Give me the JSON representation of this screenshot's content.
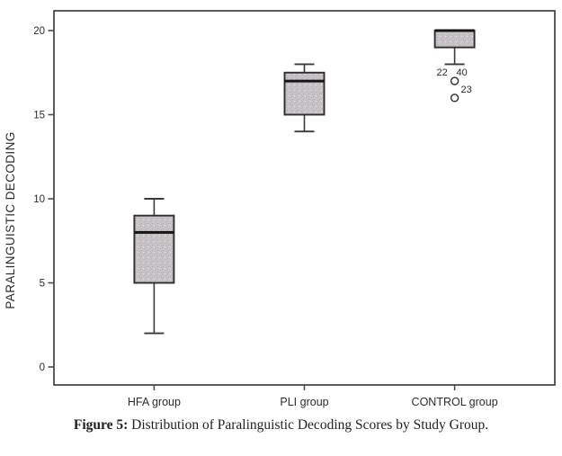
{
  "figure": {
    "caption_prefix": "Figure 5:",
    "caption_text": " Distribution of Paralinguistic Decoding Scores by Study Group."
  },
  "chart_data": {
    "type": "boxplot",
    "title": "",
    "xlabel": "",
    "ylabel": "PARALINGUISTIC DECODING",
    "ylim": [
      0,
      21.2
    ],
    "y_ticks": [
      0,
      5,
      10,
      15,
      20
    ],
    "grid": false,
    "legend": null,
    "categories": [
      "HFA group",
      "PLI group",
      "CONTROL group"
    ],
    "series": [
      {
        "name": "HFA group",
        "whisker_low": 2,
        "q1": 5,
        "median": 8,
        "q3": 9,
        "whisker_high": 10,
        "outliers": []
      },
      {
        "name": "PLI group",
        "whisker_low": 14,
        "q1": 15,
        "median": 17,
        "q3": 17.5,
        "whisker_high": 18,
        "outliers": []
      },
      {
        "name": "CONTROL group",
        "whisker_low": 18,
        "q1": 19,
        "median": 20,
        "q3": 20,
        "whisker_high": 20,
        "outliers": [
          {
            "value": 17,
            "case_labels": [
              "22",
              "40"
            ]
          },
          {
            "value": 16,
            "case_labels": [
              "23"
            ]
          }
        ]
      }
    ],
    "colors": {
      "background": "#ffffff",
      "box_fill": "#c7c3c7",
      "box_border": "#2e2e2e",
      "median": "#141414",
      "whisker": "#3a3a3a",
      "axis": "#4a4a4a",
      "outlier_stroke": "#2b2b2b",
      "text": "#2b2b2b"
    }
  }
}
